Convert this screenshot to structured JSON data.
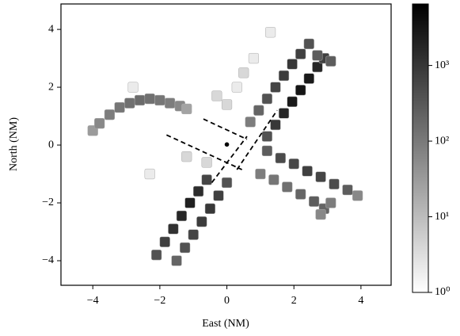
{
  "chart_data": {
    "type": "hist2d",
    "xlabel": "East (NM)",
    "ylabel": "North (NM)",
    "xlim": [
      -4.95,
      4.9
    ],
    "ylim": [
      -4.85,
      4.88
    ],
    "xticks": [
      {
        "value": -4,
        "label": "−4"
      },
      {
        "value": -2,
        "label": "−2"
      },
      0,
      2,
      4
    ],
    "yticks": [
      {
        "value": -4,
        "label": "−4"
      },
      {
        "value": -2,
        "label": "−2"
      },
      0,
      2,
      4
    ],
    "cells": {
      "x": [
        -4.0,
        -3.8,
        -3.5,
        -3.2,
        -2.9,
        -2.6,
        -2.3,
        -2.0,
        -1.7,
        -1.4,
        -1.2,
        0.7,
        0.95,
        1.2,
        1.45,
        1.7,
        1.95,
        2.2,
        2.45,
        1.2,
        1.45,
        1.7,
        1.95,
        2.2,
        2.45,
        2.7,
        2.9,
        3.1,
        2.7,
        -0.6,
        -0.85,
        -1.1,
        -1.35,
        -1.6,
        -1.85,
        -2.1,
        0.0,
        -0.25,
        -0.5,
        -0.75,
        -1.0,
        -1.25,
        -1.5,
        1.2,
        1.6,
        2.0,
        2.4,
        2.8,
        3.2,
        3.6,
        3.9,
        1.0,
        1.4,
        1.8,
        2.2,
        2.6,
        2.9,
        3.1,
        2.8,
        0.0,
        -0.3,
        0.3,
        0.5,
        1.3,
        -1.2,
        -2.3,
        -0.6,
        0.8,
        -2.8
      ],
      "y": [
        0.5,
        0.75,
        1.05,
        1.3,
        1.45,
        1.55,
        1.6,
        1.55,
        1.45,
        1.35,
        1.25,
        0.8,
        1.2,
        1.6,
        2.0,
        2.4,
        2.8,
        3.15,
        3.5,
        0.3,
        0.7,
        1.1,
        1.5,
        1.9,
        2.3,
        2.7,
        3.0,
        2.9,
        3.1,
        -1.2,
        -1.6,
        -2.0,
        -2.45,
        -2.9,
        -3.35,
        -3.8,
        -1.3,
        -1.75,
        -2.2,
        -2.65,
        -3.1,
        -3.55,
        -4.0,
        -0.2,
        -0.45,
        -0.65,
        -0.9,
        -1.1,
        -1.35,
        -1.55,
        -1.75,
        -1.0,
        -1.2,
        -1.45,
        -1.7,
        -1.95,
        -2.2,
        -2.0,
        -2.4,
        1.4,
        1.7,
        2.0,
        2.5,
        3.9,
        -0.4,
        -1.0,
        -0.6,
        3.0,
        2.0
      ],
      "count": [
        20,
        40,
        60,
        80,
        100,
        120,
        100,
        80,
        60,
        40,
        15,
        60,
        150,
        300,
        500,
        700,
        800,
        600,
        300,
        300,
        800,
        1500,
        2500,
        3000,
        2500,
        1500,
        600,
        200,
        200,
        500,
        1200,
        2000,
        1500,
        1000,
        600,
        300,
        300,
        600,
        800,
        700,
        500,
        300,
        150,
        200,
        400,
        500,
        600,
        500,
        400,
        200,
        40,
        60,
        80,
        100,
        150,
        200,
        150,
        60,
        40,
        2,
        2,
        1,
        2,
        1,
        2,
        1,
        2,
        1,
        1
      ]
    },
    "lines": [
      {
        "x": [
          -1.8,
          0.45
        ],
        "y": [
          0.35,
          -0.85
        ]
      },
      {
        "x": [
          -0.7,
          0.6
        ],
        "y": [
          0.9,
          0.2
        ]
      },
      {
        "x": [
          -0.45,
          0.6
        ],
        "y": [
          -1.3,
          0.3
        ]
      },
      {
        "x": [
          0.3,
          1.5
        ],
        "y": [
          -0.85,
          1.2
        ]
      }
    ],
    "point": {
      "x": 0.0,
      "y": 0.02
    },
    "colorbar": {
      "scale": "log",
      "clim": [
        1,
        6500
      ],
      "ticks": [
        {
          "value": 1,
          "label": "10⁰"
        },
        {
          "value": 10,
          "label": "10¹"
        },
        {
          "value": 100,
          "label": "10²"
        },
        {
          "value": 1000,
          "label": "10³"
        }
      ]
    }
  }
}
